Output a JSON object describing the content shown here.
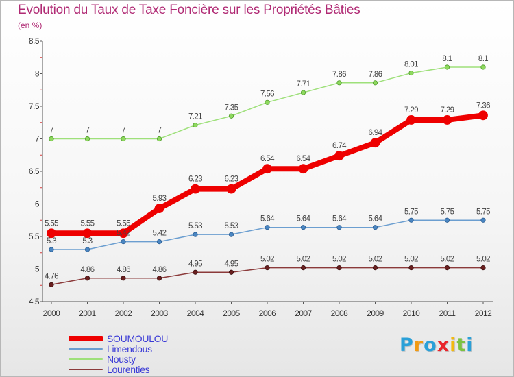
{
  "title": "Evolution du Taux de Taxe Foncière sur les Propriétés Bâties",
  "unit_label": "(en %)",
  "chart_data": {
    "type": "line",
    "title": "Evolution du Taux de Taxe Foncière sur les Propriétés Bâties",
    "ylabel": "(en %)",
    "xlabel": "",
    "ylim": [
      4.5,
      8.5
    ],
    "yticks": [
      "4.5",
      "5",
      "5.5",
      "6",
      "6.5",
      "7",
      "7.5",
      "8",
      "8.5"
    ],
    "categories": [
      "2000",
      "2001",
      "2002",
      "2003",
      "2004",
      "2005",
      "2006",
      "2007",
      "2008",
      "2009",
      "2010",
      "2011",
      "2012"
    ],
    "grid": false,
    "legend_position": "bottom-left",
    "series": [
      {
        "name": "SOUMOULOU",
        "color": "#ee0000",
        "values": [
          5.55,
          5.55,
          5.55,
          5.93,
          6.23,
          6.23,
          6.54,
          6.54,
          6.74,
          6.94,
          7.29,
          7.29,
          7.36
        ],
        "labels": [
          "5.55",
          "5.55",
          "5.55",
          "5.93",
          "6.23",
          "6.23",
          "6.54",
          "6.54",
          "6.74",
          "6.94",
          "7.29",
          "7.29",
          "7.36"
        ]
      },
      {
        "name": "Limendous",
        "color": "#6b9ed0",
        "values": [
          5.3,
          5.3,
          5.42,
          5.42,
          5.53,
          5.53,
          5.64,
          5.64,
          5.64,
          5.64,
          5.75,
          5.75,
          5.75
        ],
        "labels": [
          "5.3",
          "5.3",
          "5.42",
          "5.42",
          "5.53",
          "5.53",
          "5.64",
          "5.64",
          "5.64",
          "5.64",
          "5.75",
          "5.75",
          "5.75"
        ]
      },
      {
        "name": "Nousty",
        "color": "#9ee07a",
        "values": [
          7,
          7,
          7,
          7,
          7.21,
          7.35,
          7.56,
          7.71,
          7.86,
          7.86,
          8.01,
          8.1,
          8.1
        ],
        "labels": [
          "7",
          "7",
          "7",
          "7",
          "7.21",
          "7.35",
          "7.56",
          "7.71",
          "7.86",
          "7.86",
          "8.01",
          "8.1",
          "8.1"
        ]
      },
      {
        "name": "Lourenties",
        "color": "#8b3a3a",
        "values": [
          4.76,
          4.86,
          4.86,
          4.86,
          4.95,
          4.95,
          5.02,
          5.02,
          5.02,
          5.02,
          5.02,
          5.02,
          5.02
        ],
        "labels": [
          "4.76",
          "4.86",
          "4.86",
          "4.86",
          "4.95",
          "4.95",
          "5.02",
          "5.02",
          "5.02",
          "5.02",
          "5.02",
          "5.02",
          "5.02"
        ]
      }
    ]
  },
  "legend": [
    {
      "name": "SOUMOULOU",
      "color": "#ee0000"
    },
    {
      "name": "Limendous",
      "color": "#6b9ed0"
    },
    {
      "name": "Nousty",
      "color": "#9ee07a"
    },
    {
      "name": "Lourenties",
      "color": "#8b3a3a"
    }
  ],
  "logo": {
    "text": "Proxiti",
    "letters": [
      "P",
      "r",
      "o",
      "x",
      "i",
      "t",
      "i"
    ],
    "colors": [
      "#2aa0d8",
      "#f29a12",
      "#2aa0d8",
      "#e9252b",
      "#f2b90f",
      "#7cc242",
      "#2aa0d8"
    ]
  }
}
